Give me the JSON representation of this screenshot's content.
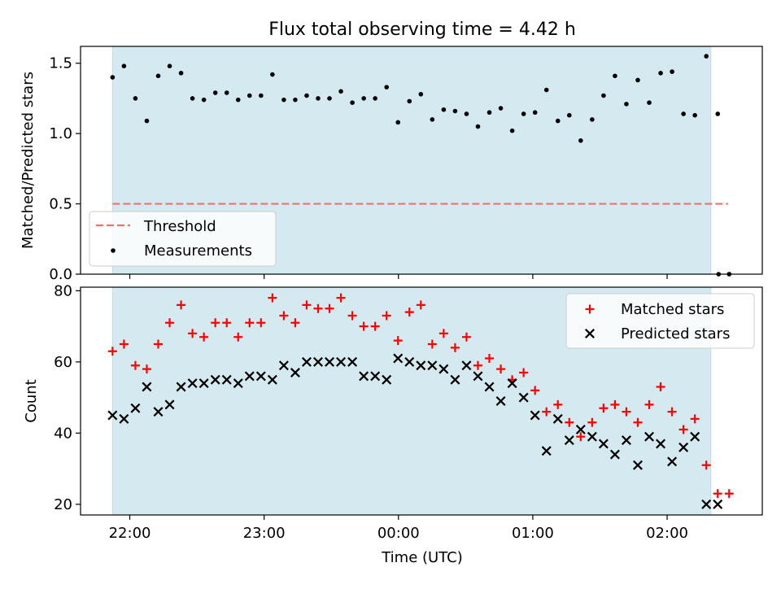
{
  "chart_data": [
    {
      "type": "scatter",
      "title": "Flux total observing time = 4.42 h",
      "xlabel": "",
      "ylabel": "Matched/Predicted stars",
      "ylim": [
        0,
        1.62
      ],
      "yticks": [
        "0.0",
        "0.5",
        "1.0",
        "1.5"
      ],
      "ytick_values": [
        0,
        0.5,
        1.0,
        1.5
      ],
      "x_range_minutes": [
        -22.0,
        282.5
      ],
      "shaded_span_minutes": [
        -7.7,
        259.5
      ],
      "threshold": {
        "value": 0.5,
        "x_minutes": [
          -7.7,
          267.2
        ],
        "color": "#f07070"
      },
      "legend": {
        "position": "lower-left",
        "entries": [
          "Threshold",
          "Measurements"
        ]
      },
      "series": [
        {
          "name": "Measurements",
          "x_minutes": [
            -7.7,
            -2.6,
            2.5,
            7.6,
            12.7,
            17.8,
            22.9,
            28.0,
            33.1,
            38.2,
            43.3,
            48.4,
            53.5,
            58.6,
            63.7,
            68.8,
            73.9,
            79.0,
            84.1,
            89.2,
            94.3,
            99.4,
            104.5,
            109.6,
            114.7,
            119.8,
            124.9,
            130.0,
            135.1,
            140.2,
            145.3,
            150.4,
            155.5,
            160.6,
            165.7,
            170.8,
            175.9,
            181.0,
            186.1,
            191.2,
            196.3,
            201.4,
            206.5,
            211.6,
            216.7,
            221.8,
            226.9,
            232.0,
            237.1,
            242.2,
            247.3,
            252.4,
            257.5,
            262.6,
            267.7
          ],
          "y": [
            1.4,
            1.48,
            1.25,
            1.09,
            1.41,
            1.48,
            1.43,
            1.25,
            1.24,
            1.29,
            1.29,
            1.24,
            1.27,
            1.27,
            1.42,
            1.24,
            1.24,
            1.27,
            1.25,
            1.25,
            1.3,
            1.22,
            1.25,
            1.25,
            1.33,
            1.08,
            1.23,
            1.28,
            1.1,
            1.17,
            1.16,
            1.14,
            1.05,
            1.15,
            1.18,
            1.02,
            1.14,
            1.15,
            1.31,
            1.09,
            1.13,
            0.95,
            1.1,
            1.27,
            1.41,
            1.21,
            1.38,
            1.22,
            1.43,
            1.44,
            1.14,
            1.13,
            1.55,
            1.14,
            0.0
          ]
        }
      ]
    },
    {
      "type": "scatter",
      "title": "",
      "xlabel": "Time (UTC)",
      "ylabel": "Count",
      "ylim": [
        17,
        81
      ],
      "yticks": [
        "20",
        "40",
        "60",
        "80"
      ],
      "ytick_values": [
        20,
        40,
        60,
        80
      ],
      "x_range_minutes": [
        -22.0,
        282.5
      ],
      "xticks": [
        "22:00",
        "23:00",
        "00:00",
        "01:00",
        "02:00"
      ],
      "xtick_minutes": [
        0,
        60,
        120,
        180,
        240
      ],
      "shaded_span_minutes": [
        -7.7,
        259.5
      ],
      "legend": {
        "position": "upper-right",
        "entries": [
          "Matched stars",
          "Predicted stars"
        ]
      },
      "series": [
        {
          "name": "Matched stars",
          "color": "#ff0000",
          "x_minutes": [
            -7.7,
            -2.6,
            2.5,
            7.6,
            12.7,
            17.8,
            22.9,
            28.0,
            33.1,
            38.2,
            43.3,
            48.4,
            53.5,
            58.6,
            63.7,
            68.8,
            73.9,
            79.0,
            84.1,
            89.2,
            94.3,
            99.4,
            104.5,
            109.6,
            114.7,
            119.8,
            124.9,
            130.0,
            135.1,
            140.2,
            145.3,
            150.4,
            155.5,
            160.6,
            165.7,
            170.8,
            175.9,
            181.0,
            186.1,
            191.2,
            196.3,
            201.4,
            206.5,
            211.6,
            216.7,
            221.8,
            226.9,
            232.0,
            237.1,
            242.2,
            247.3,
            252.4,
            257.5,
            262.6,
            267.7
          ],
          "y": [
            63,
            65,
            59,
            58,
            65,
            71,
            76,
            68,
            67,
            71,
            71,
            67,
            71,
            71,
            78,
            73,
            71,
            76,
            75,
            75,
            78,
            73,
            70,
            70,
            73,
            66,
            74,
            76,
            65,
            68,
            64,
            67,
            59,
            61,
            58,
            55,
            57,
            52,
            46,
            48,
            43,
            39,
            43,
            47,
            48,
            46,
            43,
            48,
            53,
            46,
            41,
            44,
            31,
            23,
            23
          ]
        },
        {
          "name": "Predicted stars",
          "color": "#000000",
          "x_minutes": [
            -7.7,
            -2.6,
            2.5,
            7.6,
            12.7,
            17.8,
            22.9,
            28.0,
            33.1,
            38.2,
            43.3,
            48.4,
            53.5,
            58.6,
            63.7,
            68.8,
            73.9,
            79.0,
            84.1,
            89.2,
            94.3,
            99.4,
            104.5,
            109.6,
            114.7,
            119.8,
            124.9,
            130.0,
            135.1,
            140.2,
            145.3,
            150.4,
            155.5,
            160.6,
            165.7,
            170.8,
            175.9,
            181.0,
            186.1,
            191.2,
            196.3,
            201.4,
            206.5,
            211.6,
            216.7,
            221.8,
            226.9,
            232.0,
            237.1,
            242.2,
            247.3,
            252.4,
            257.5,
            262.6
          ],
          "y": [
            45,
            44,
            47,
            53,
            46,
            48,
            53,
            54,
            54,
            55,
            55,
            54,
            56,
            56,
            55,
            59,
            57,
            60,
            60,
            60,
            60,
            60,
            56,
            56,
            55,
            61,
            60,
            59,
            59,
            58,
            55,
            59,
            56,
            53,
            49,
            54,
            50,
            45,
            35,
            44,
            38,
            41,
            39,
            37,
            34,
            38,
            31,
            39,
            37,
            32,
            36,
            39,
            20,
            20
          ]
        }
      ]
    }
  ],
  "colors": {
    "shade": "#d4eaf0",
    "shade_edge": "#bfdde6",
    "threshold": "#f07070",
    "matched": "#ff0000",
    "predicted": "#000000"
  }
}
